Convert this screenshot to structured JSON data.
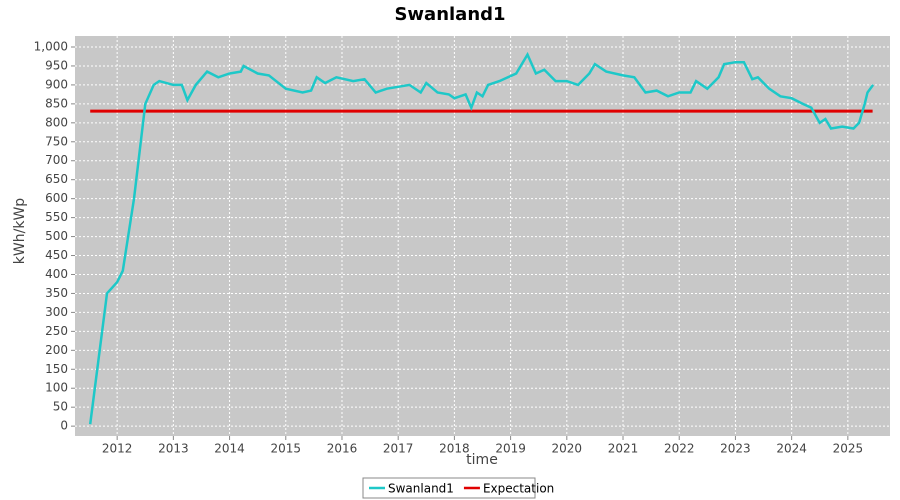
{
  "chart_data": {
    "type": "line",
    "title": "Swanland1",
    "x_label": "time",
    "y_label": "kWh/kWp",
    "xlim": [
      2011.25,
      2025.75
    ],
    "xticks": [
      2012,
      2013,
      2014,
      2015,
      2016,
      2017,
      2018,
      2019,
      2020,
      2021,
      2022,
      2023,
      2024,
      2025
    ],
    "ylim": [
      -26,
      1029
    ],
    "yticks": [
      0,
      50,
      100,
      150,
      200,
      250,
      300,
      350,
      400,
      450,
      500,
      550,
      600,
      650,
      700,
      750,
      800,
      850,
      900,
      950,
      {
        "value": 1000,
        "label": "1,000"
      }
    ],
    "grid": true,
    "legend": "bottom",
    "series": [
      {
        "name": "Swanland1",
        "color": "#1ec8c8",
        "x": [
          2011.52,
          2011.82,
          2012.0,
          2012.1,
          2012.3,
          2012.5,
          2012.65,
          2012.75,
          2013.0,
          2013.15,
          2013.25,
          2013.4,
          2013.6,
          2013.8,
          2014.0,
          2014.2,
          2014.25,
          2014.5,
          2014.7,
          2015.0,
          2015.3,
          2015.45,
          2015.55,
          2015.7,
          2015.9,
          2016.2,
          2016.4,
          2016.6,
          2016.8,
          2017.0,
          2017.2,
          2017.4,
          2017.5,
          2017.7,
          2017.9,
          2018.0,
          2018.2,
          2018.3,
          2018.4,
          2018.5,
          2018.6,
          2018.8,
          2019.1,
          2019.3,
          2019.45,
          2019.6,
          2019.8,
          2020.0,
          2020.2,
          2020.4,
          2020.5,
          2020.7,
          2021.0,
          2021.2,
          2021.4,
          2021.6,
          2021.8,
          2022.0,
          2022.2,
          2022.3,
          2022.5,
          2022.7,
          2022.8,
          2023.0,
          2023.15,
          2023.3,
          2023.4,
          2023.6,
          2023.8,
          2024.0,
          2024.2,
          2024.35,
          2024.5,
          2024.6,
          2024.7,
          2024.9,
          2025.1,
          2025.2,
          2025.3,
          2025.35,
          2025.45
        ],
        "values": [
          5,
          350,
          380,
          410,
          600,
          850,
          900,
          910,
          900,
          900,
          860,
          900,
          935,
          920,
          930,
          935,
          950,
          930,
          925,
          890,
          880,
          885,
          920,
          905,
          920,
          910,
          915,
          880,
          890,
          895,
          900,
          880,
          905,
          880,
          875,
          865,
          875,
          840,
          880,
          870,
          900,
          910,
          930,
          980,
          930,
          940,
          910,
          910,
          900,
          930,
          955,
          935,
          925,
          920,
          880,
          885,
          870,
          880,
          880,
          910,
          890,
          920,
          955,
          960,
          960,
          915,
          920,
          890,
          870,
          865,
          850,
          840,
          800,
          810,
          785,
          790,
          785,
          800,
          850,
          880,
          900
        ]
      },
      {
        "name": "Expectation",
        "color": "#e00000",
        "x": [
          2011.52,
          2025.44
        ],
        "values": [
          831,
          831
        ]
      }
    ]
  }
}
